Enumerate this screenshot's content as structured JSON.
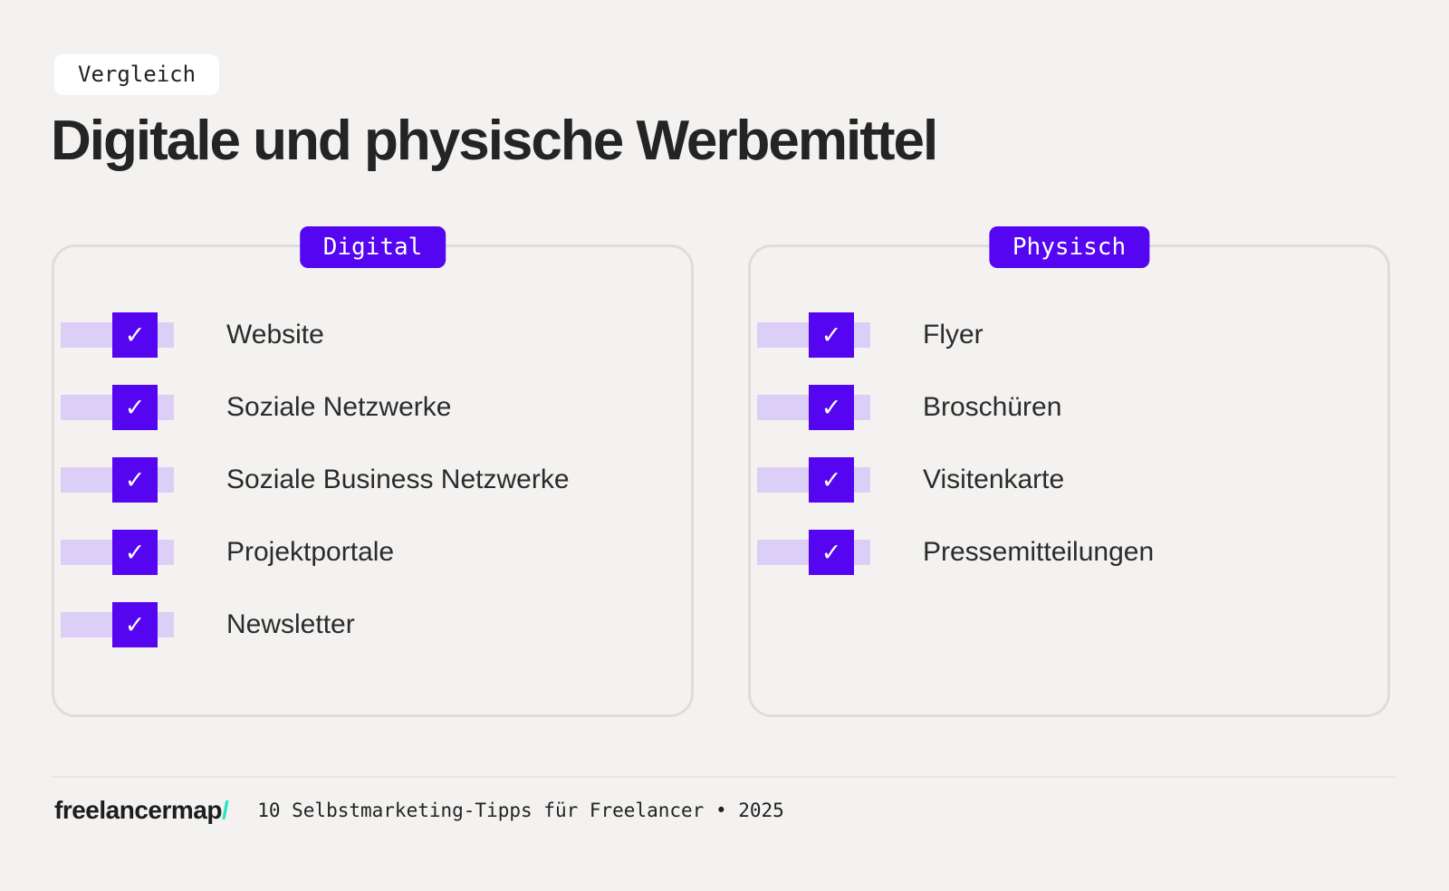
{
  "page": {
    "tag": "Vergleich",
    "title": "Digitale und physische Werbemittel"
  },
  "cards": [
    {
      "badge": "Digital",
      "items": [
        "Website",
        "Soziale Netzwerke",
        "Soziale Business Netzwerke",
        "Projektportale",
        "Newsletter"
      ]
    },
    {
      "badge": "Physisch",
      "items": [
        "Flyer",
        "Broschüren",
        "Visitenkarte",
        "Pressemitteilungen"
      ]
    }
  ],
  "footer": {
    "logo_text": "freelancermap",
    "logo_slash": "/",
    "caption": "10 Selbstmarketing-Tipps für Freelancer • 2025"
  },
  "icons": {
    "check": "✓"
  },
  "colors": {
    "background": "#F3F2F0",
    "accent_purple": "#5505F0",
    "light_purple": "#DCCFF7",
    "teal": "#27E6C3",
    "card_border": "#DEDDDB",
    "text_dark": "#242424",
    "divider": "#E8E7E5"
  }
}
